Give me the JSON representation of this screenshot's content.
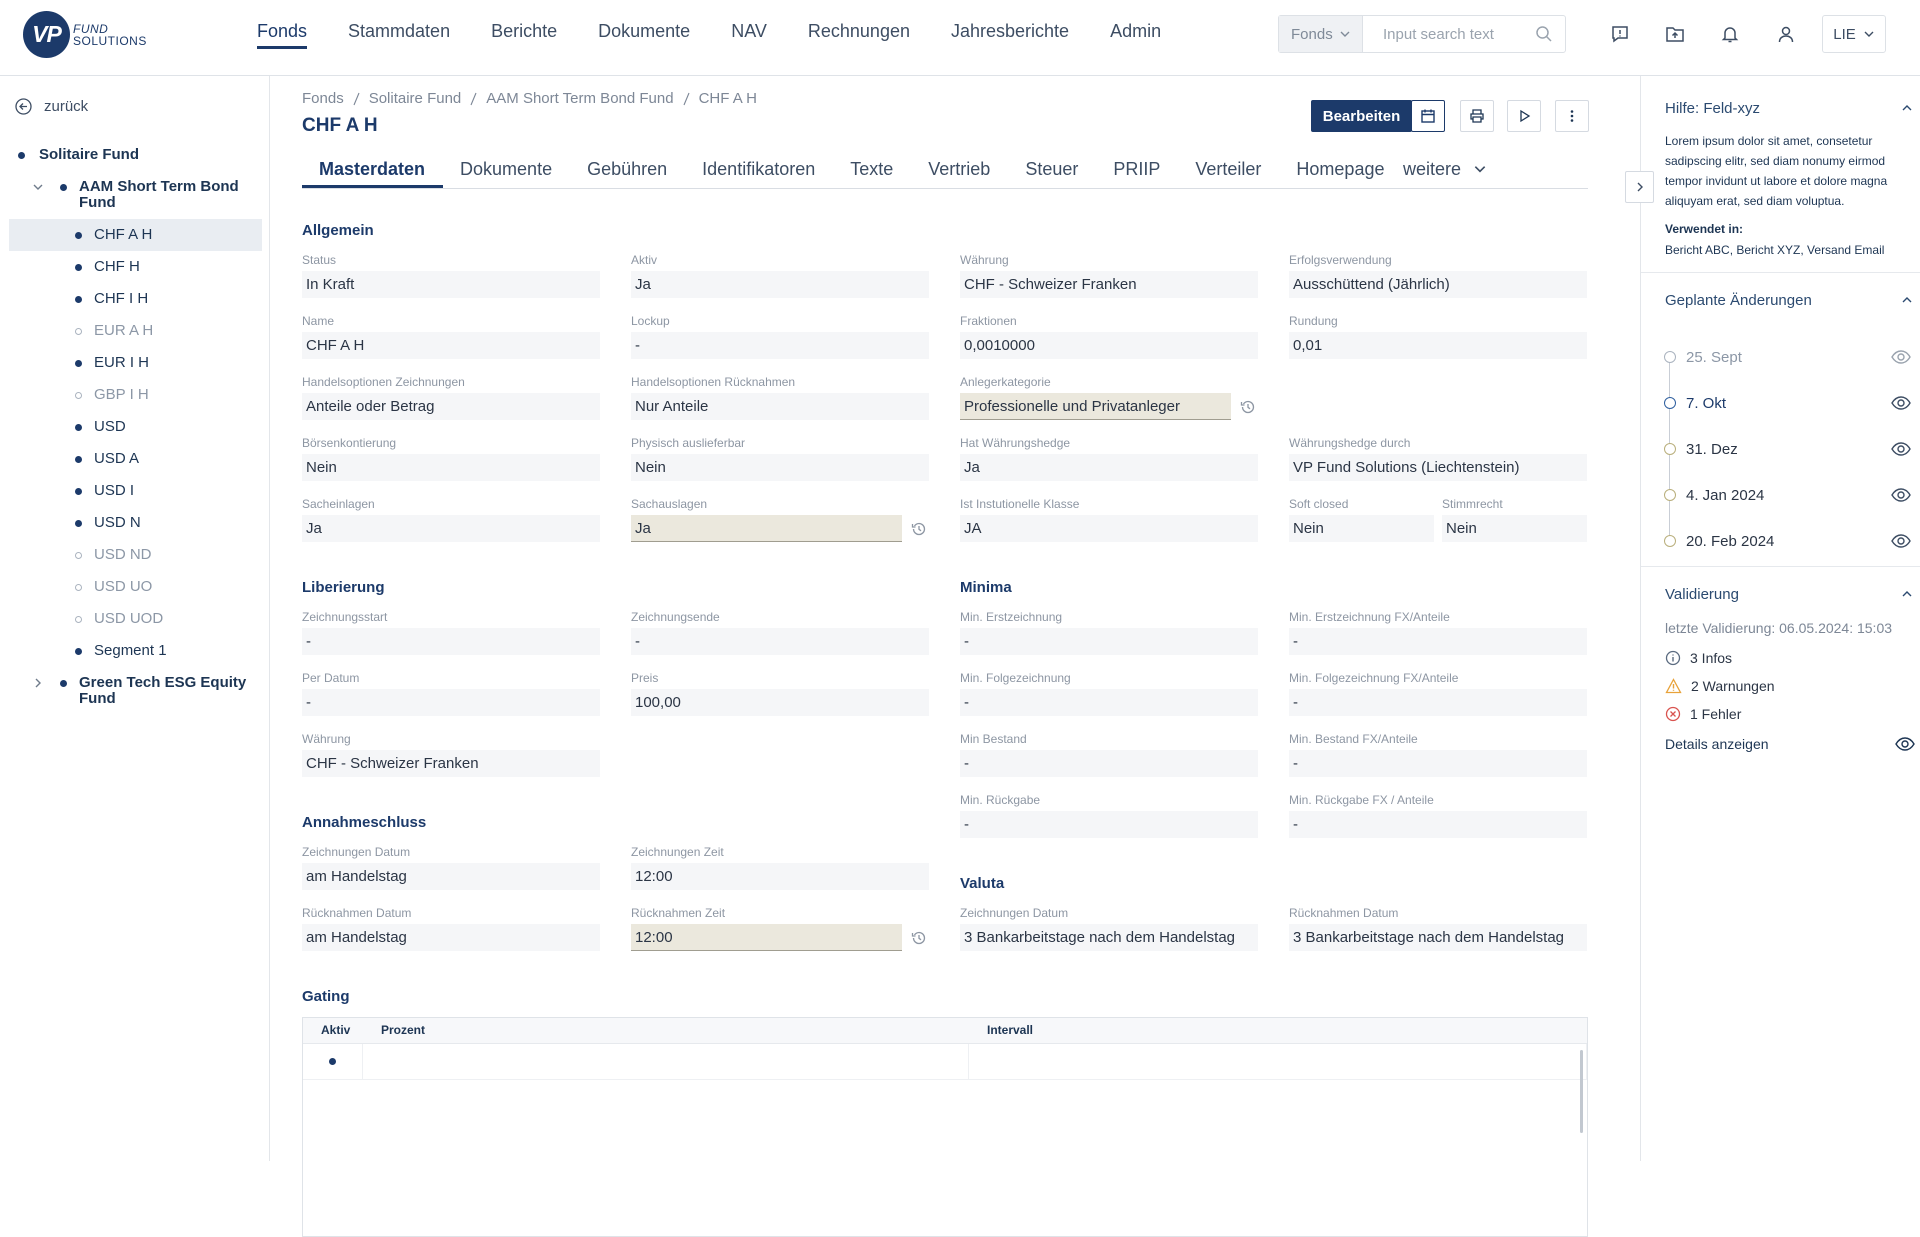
{
  "header": {
    "logo": {
      "mark": "VP",
      "line1": "FUND",
      "line2": "SOLUTIONS"
    },
    "nav": [
      "Fonds",
      "Stammdaten",
      "Berichte",
      "Dokumente",
      "NAV",
      "Rechnungen",
      "Jahresberichte",
      "Admin"
    ],
    "active_nav": 0,
    "search_scope": "Fonds",
    "search_placeholder": "Input search text",
    "language": "LIE"
  },
  "sidebar": {
    "back": "zurück",
    "tree": [
      {
        "label": "Solitaire Fund",
        "level": 0,
        "status": "active"
      },
      {
        "label": "AAM Short Term Bond Fund",
        "level": 1,
        "status": "active",
        "expanded": true
      },
      {
        "label": "CHF A H",
        "level": 2,
        "status": "active",
        "selected": true
      },
      {
        "label": "CHF H",
        "level": 2,
        "status": "active"
      },
      {
        "label": "CHF I H",
        "level": 2,
        "status": "active"
      },
      {
        "label": "EUR A H",
        "level": 2,
        "status": "inactive"
      },
      {
        "label": "EUR I H",
        "level": 2,
        "status": "active"
      },
      {
        "label": "GBP I H",
        "level": 2,
        "status": "inactive"
      },
      {
        "label": "USD",
        "level": 2,
        "status": "active"
      },
      {
        "label": "USD A",
        "level": 2,
        "status": "active"
      },
      {
        "label": "USD I",
        "level": 2,
        "status": "active"
      },
      {
        "label": "USD N",
        "level": 2,
        "status": "active"
      },
      {
        "label": "USD ND",
        "level": 2,
        "status": "inactive"
      },
      {
        "label": "USD UO",
        "level": 2,
        "status": "inactive"
      },
      {
        "label": "USD UOD",
        "level": 2,
        "status": "inactive"
      },
      {
        "label": "Segment 1",
        "level": 2,
        "status": "active"
      },
      {
        "label": "Green Tech ESG Equity Fund",
        "level": 1,
        "status": "active",
        "expanded": false
      }
    ]
  },
  "main": {
    "breadcrumb": [
      "Fonds",
      "Solitaire Fund",
      "AAM Short Term Bond Fund",
      "CHF A H"
    ],
    "title": "CHF A H",
    "edit_button": "Bearbeiten",
    "tabs": [
      "Masterdaten",
      "Dokumente",
      "Gebühren",
      "Identifikatoren",
      "Texte",
      "Vertrieb",
      "Steuer",
      "PRIIP",
      "Verteiler",
      "Homepage"
    ],
    "active_tab": 0,
    "more_tab": "weitere",
    "general": {
      "title": "Allgemein",
      "fields": [
        {
          "label": "Status",
          "value": "In Kraft"
        },
        {
          "label": "Aktiv",
          "value": "Ja"
        },
        {
          "label": "Währung",
          "value": "CHF - Schweizer Franken"
        },
        {
          "label": "Erfolgsverwendung",
          "value": "Ausschüttend (Jährlich)"
        },
        {
          "label": "Name",
          "value": "CHF A H"
        },
        {
          "label": "Lockup",
          "value": "-"
        },
        {
          "label": "Fraktionen",
          "value": "0,0010000"
        },
        {
          "label": "Rundung",
          "value": "0,01"
        },
        {
          "label": "Handelsoptionen Zeichnungen",
          "value": "Anteile oder Betrag"
        },
        {
          "label": "Handelsoptionen Rücknahmen",
          "value": "Nur Anteile"
        },
        {
          "label": "Anlegerkategorie",
          "value": "Professionelle und Privatanleger",
          "modified": true
        },
        null,
        {
          "label": "Börsenkontierung",
          "value": "Nein"
        },
        {
          "label": "Physisch auslieferbar",
          "value": "Nein"
        },
        {
          "label": "Hat Währungshedge",
          "value": "Ja"
        },
        {
          "label": "Währungshedge durch",
          "value": "VP Fund Solutions (Liechtenstein)"
        },
        {
          "label": "Sacheinlagen",
          "value": "Ja"
        },
        {
          "label": "Sachauslagen",
          "value": "Ja",
          "modified": true
        },
        {
          "label": "Ist Instutionelle Klasse",
          "value": "JA"
        },
        {
          "fields": [
            {
              "label": "Soft closed",
              "value": "Nein"
            },
            {
              "label": "Stimmrecht",
              "value": "Nein"
            }
          ]
        }
      ]
    },
    "left_sections": [
      {
        "title": "Liberierung",
        "fields": [
          {
            "label": "Zeichnungsstart",
            "value": "-"
          },
          {
            "label": "Zeichnungsende",
            "value": "-"
          },
          {
            "label": "Per Datum",
            "value": "-"
          },
          {
            "label": "Preis",
            "value": "100,00"
          },
          {
            "label": "Währung",
            "value": "CHF - Schweizer Franken"
          }
        ]
      },
      {
        "title": "Annahmeschluss",
        "fields": [
          {
            "label": "Zeichnungen Datum",
            "value": "am Handelstag"
          },
          {
            "label": "Zeichnungen Zeit",
            "value": "12:00"
          },
          {
            "label": "Rücknahmen Datum",
            "value": "am Handelstag"
          },
          {
            "label": "Rücknahmen Zeit",
            "value": "12:00",
            "modified": true
          }
        ]
      }
    ],
    "right_sections": [
      {
        "title": "Minima",
        "fields": [
          {
            "label": "Min. Erstzeichnung",
            "value": "-"
          },
          {
            "label": "Min. Erstzeichnung FX/Anteile",
            "value": "-"
          },
          {
            "label": "Min. Folgezeichnung",
            "value": "-"
          },
          {
            "label": "Min. Folgezeichnung FX/Anteile",
            "value": "-"
          },
          {
            "label": "Min Bestand",
            "value": "-"
          },
          {
            "label": "Min. Bestand FX/Anteile",
            "value": "-"
          },
          {
            "label": "Min. Rückgabe",
            "value": "-"
          },
          {
            "label": "Min. Rückgabe FX / Anteile",
            "value": "-"
          }
        ]
      },
      {
        "title": "Valuta",
        "fields": [
          {
            "label": "Zeichnungen Datum",
            "value": "3 Bankarbeitstage nach dem Handelstag"
          },
          {
            "label": "Rücknahmen Datum",
            "value": "3 Bankarbeitstage nach dem Handelstag"
          }
        ]
      }
    ],
    "gating": {
      "title": "Gating",
      "columns": [
        "Aktiv",
        "Prozent",
        "Intervall"
      ]
    }
  },
  "side_panel": {
    "help": {
      "title": "Hilfe: Feld-xyz",
      "text": "Lorem ipsum dolor sit amet, consetetur sadipscing elitr, sed diam nonumy eirmod tempor invidunt ut labore et dolore magna aliquyam erat, sed diam voluptua.",
      "used_in_label": "Verwendet in:",
      "used_in": "Bericht ABC, Bericht XYZ, Versand Email"
    },
    "planned": {
      "title": "Geplante Änderungen",
      "items": [
        {
          "date": "25. Sept",
          "status": "past"
        },
        {
          "date": "7. Okt",
          "status": "current"
        },
        {
          "date": "31. Dez",
          "status": "future"
        },
        {
          "date": "4. Jan 2024",
          "status": "future"
        },
        {
          "date": "20. Feb 2024",
          "status": "future"
        }
      ]
    },
    "validation": {
      "title": "Validierung",
      "last": "letzte Validierung: 06.05.2024: 15:03",
      "items": [
        {
          "text": "3 Infos",
          "type": "info"
        },
        {
          "text": "2 Warnungen",
          "type": "warning"
        },
        {
          "text": "1 Fehler",
          "type": "error"
        }
      ],
      "details": "Details anzeigen"
    }
  }
}
